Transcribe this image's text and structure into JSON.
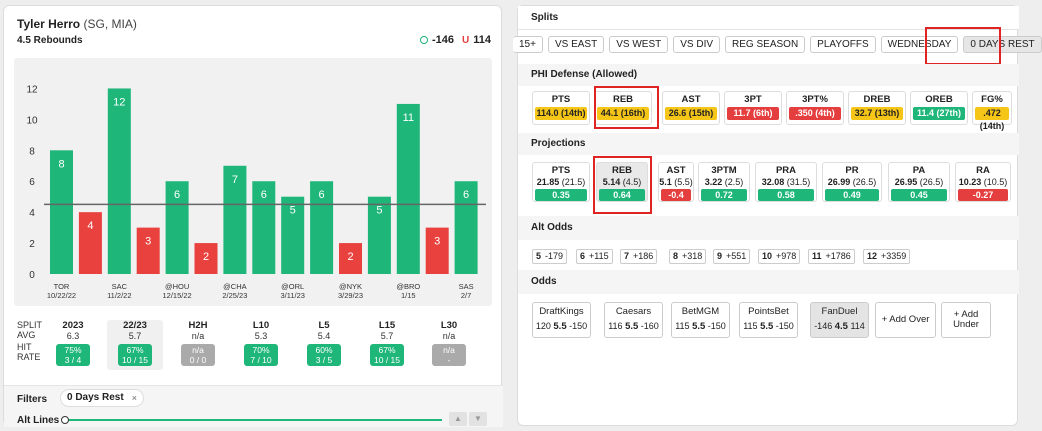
{
  "player": {
    "name": "Tyler Herro",
    "pos": "(SG, MIA)",
    "prop": "4.5 Rebounds",
    "over_odds": "-146",
    "under_letter": "U",
    "under_odds": "114"
  },
  "chart_data": {
    "type": "bar",
    "categories": [
      "TOR 10/22/22",
      "SAC 11/2/22",
      "@HOU 12/15/22",
      "@CHA 2/25/23",
      "@ORL 3/11/23",
      "@NYK 3/29/23",
      "@BRO 1/15",
      "SAS 2/7"
    ],
    "bars": [
      {
        "label": "TOR",
        "date": "10/22/22",
        "value": 8,
        "hit": true
      },
      {
        "label": "",
        "date": "",
        "value": 4,
        "hit": false
      },
      {
        "label": "SAC",
        "date": "11/2/22",
        "value": 12,
        "hit": true
      },
      {
        "label": "",
        "date": "",
        "value": 3,
        "hit": false
      },
      {
        "label": "@HOU",
        "date": "12/15/22",
        "value": 6,
        "hit": true
      },
      {
        "label": "",
        "date": "",
        "value": 2,
        "hit": false
      },
      {
        "label": "@CHA",
        "date": "2/25/23",
        "value": 7,
        "hit": true
      },
      {
        "label": "",
        "date": "",
        "value": 6,
        "hit": true
      },
      {
        "label": "@ORL",
        "date": "3/11/23",
        "value": 5,
        "hit": true
      },
      {
        "label": "",
        "date": "",
        "value": 6,
        "hit": true
      },
      {
        "label": "@NYK",
        "date": "3/29/23",
        "value": 2,
        "hit": false
      },
      {
        "label": "",
        "date": "",
        "value": 5,
        "hit": true
      },
      {
        "label": "@BRO",
        "date": "1/15",
        "value": 11,
        "hit": true
      },
      {
        "label": "",
        "date": "",
        "value": 3,
        "hit": false
      },
      {
        "label": "SAS",
        "date": "2/7",
        "value": 6,
        "hit": true
      }
    ],
    "yticks": [
      0,
      2,
      4,
      6,
      8,
      10,
      12
    ],
    "ylim": [
      0,
      13
    ],
    "line": 4.5,
    "colors": {
      "over": "#1fb67a",
      "under": "#e8413e",
      "line": "#666666"
    }
  },
  "splits": {
    "row_labels": [
      "SPLIT",
      "AVG",
      "HIT",
      "RATE"
    ],
    "cols": [
      {
        "head": "2023",
        "avg": "6.3",
        "rate": "75%",
        "frac": "3 / 4",
        "color": "green"
      },
      {
        "head": "22/23",
        "avg": "5.7",
        "rate": "67%",
        "frac": "10 / 15",
        "color": "green",
        "selected": true
      },
      {
        "head": "H2H",
        "avg": "n/a",
        "rate": "n/a",
        "frac": "0 / 0",
        "color": "grey"
      },
      {
        "head": "L10",
        "avg": "5.3",
        "rate": "70%",
        "frac": "7 / 10",
        "color": "green"
      },
      {
        "head": "L5",
        "avg": "5.4",
        "rate": "60%",
        "frac": "3 / 5",
        "color": "green"
      },
      {
        "head": "L15",
        "avg": "5.7",
        "rate": "67%",
        "frac": "10 / 15",
        "color": "green"
      },
      {
        "head": "L30",
        "avg": "n/a",
        "rate": "n/a",
        "frac": "-",
        "color": "grey"
      }
    ]
  },
  "filters": {
    "label": "Filters",
    "chip": "0 Days Rest",
    "chip_close": "×",
    "alt_lines": "Alt Lines",
    "up": "▲",
    "down": "▼"
  },
  "right": {
    "splits_title": "Splits",
    "split_chips": [
      "15+",
      "VS EAST",
      "VS WEST",
      "VS DIV",
      "REG SEASON",
      "PLAYOFFS",
      "WEDNESDAY",
      "0 DAYS REST"
    ],
    "defense_title": "PHI Defense (Allowed)",
    "defense": [
      {
        "name": "PTS",
        "val": "114.0 (14th)",
        "c": "yel"
      },
      {
        "name": "REB",
        "val": "44.1 (16th)",
        "c": "yel"
      },
      {
        "name": "AST",
        "val": "26.6 (15th)",
        "c": "yel"
      },
      {
        "name": "3PT",
        "val": "11.7 (6th)",
        "c": "redb"
      },
      {
        "name": "3PT%",
        "val": ".350 (4th)",
        "c": "redb"
      },
      {
        "name": "DREB",
        "val": "32.7 (13th)",
        "c": "yel"
      },
      {
        "name": "OREB",
        "val": "11.4 (27th)",
        "c": "greb"
      },
      {
        "name": "FG%",
        "val": ".472 (14th)",
        "c": "yel"
      }
    ],
    "proj_title": "Projections",
    "projections": [
      {
        "name": "PTS",
        "proj": "21.85",
        "line": "(21.5)",
        "diff": "0.35",
        "c": "greb"
      },
      {
        "name": "REB",
        "proj": "5.14",
        "line": "(4.5)",
        "diff": "0.64",
        "c": "greb",
        "hl": true
      },
      {
        "name": "AST",
        "proj": "5.1",
        "line": "(5.5)",
        "diff": "-0.4",
        "c": "redb"
      },
      {
        "name": "3PTM",
        "proj": "3.22",
        "line": "(2.5)",
        "diff": "0.72",
        "c": "greb"
      },
      {
        "name": "PRA",
        "proj": "32.08",
        "line": "(31.5)",
        "diff": "0.58",
        "c": "greb"
      },
      {
        "name": "PR",
        "proj": "26.99",
        "line": "(26.5)",
        "diff": "0.49",
        "c": "greb"
      },
      {
        "name": "PA",
        "proj": "26.95",
        "line": "(26.5)",
        "diff": "0.45",
        "c": "greb"
      },
      {
        "name": "RA",
        "proj": "10.23",
        "line": "(10.5)",
        "diff": "-0.27",
        "c": "redb"
      }
    ],
    "alt_title": "Alt Odds",
    "alt_odds": [
      {
        "line": "5",
        "odds": "-179"
      },
      {
        "line": "6",
        "odds": "+115"
      },
      {
        "line": "7",
        "odds": "+186"
      },
      {
        "line": "8",
        "odds": "+318"
      },
      {
        "line": "9",
        "odds": "+551"
      },
      {
        "line": "10",
        "odds": "+978"
      },
      {
        "line": "11",
        "odds": "+1786"
      },
      {
        "line": "12",
        "odds": "+3359"
      }
    ],
    "odds_title": "Odds",
    "books": [
      {
        "name": "DraftKings",
        "over": "120",
        "line": "5.5",
        "under": "-150"
      },
      {
        "name": "Caesars",
        "over": "116",
        "line": "5.5",
        "under": "-160"
      },
      {
        "name": "BetMGM",
        "over": "115",
        "line": "5.5",
        "under": "-150"
      },
      {
        "name": "PointsBet",
        "over": "115",
        "line": "5.5",
        "under": "-150"
      },
      {
        "name": "FanDuel",
        "over": "-146",
        "line": "4.5",
        "under": "114",
        "selected": true
      }
    ],
    "add_over": "+ Add Over",
    "add_under": "+ Add Under"
  }
}
